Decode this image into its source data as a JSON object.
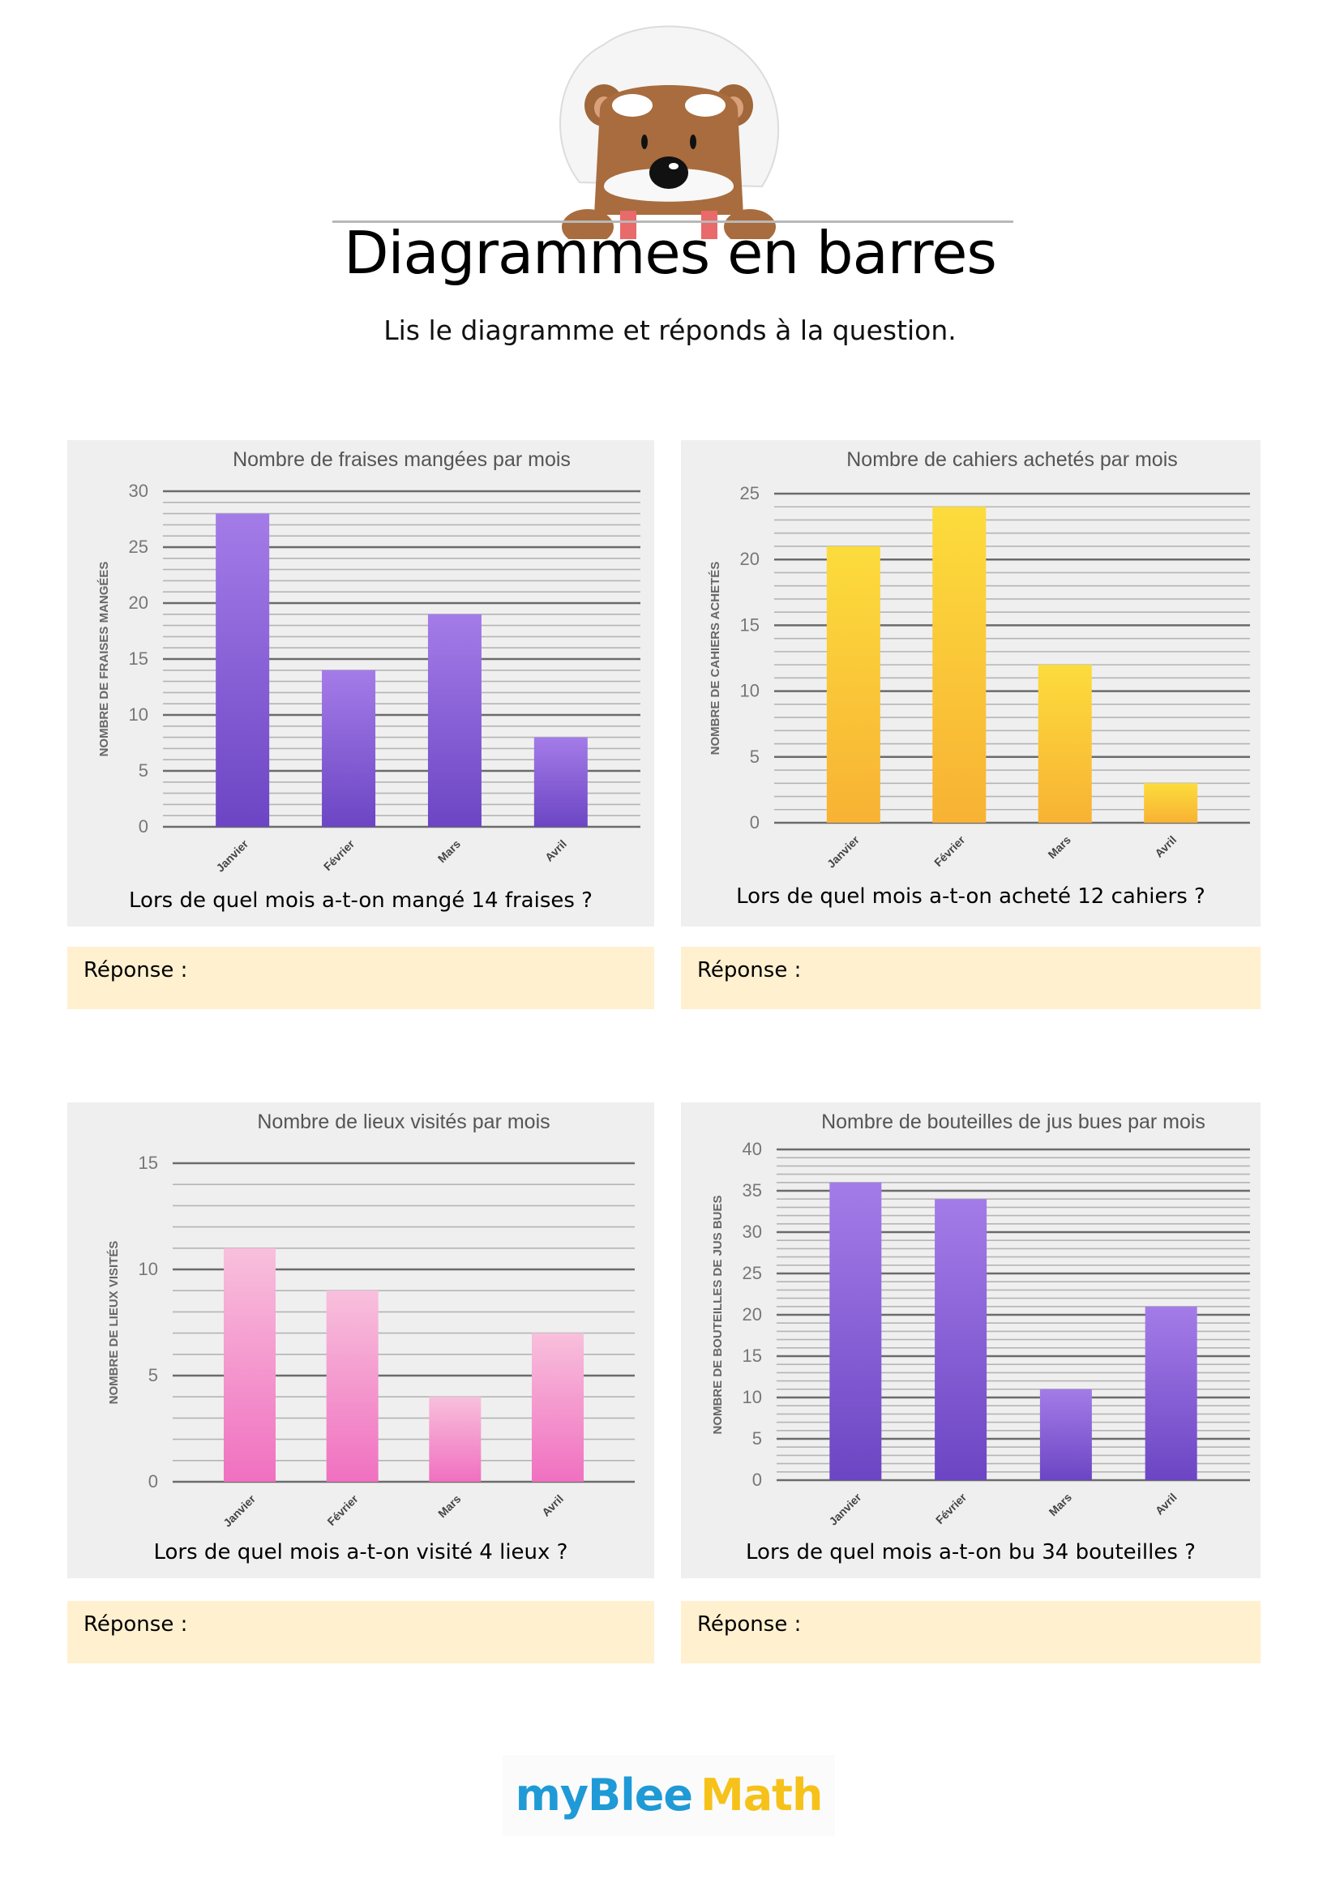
{
  "header": {
    "title": "Diagrammes en barres",
    "subtitle": "Lis le diagramme et réponds à la question.",
    "mascot": "bear-mascot-icon"
  },
  "exercises": [
    {
      "question": "Lors de quel mois a-t-on mangé 14 fraises ?",
      "answer_label": "Réponse :"
    },
    {
      "question": "Lors de quel mois a-t-on acheté 12 cahiers ?",
      "answer_label": "Réponse :"
    },
    {
      "question": "Lors de quel mois a-t-on visité 4 lieux ?",
      "answer_label": "Réponse :"
    },
    {
      "question": "Lors de quel mois a-t-on bu 34 bouteilles ?",
      "answer_label": "Réponse :"
    }
  ],
  "chart_data": [
    {
      "type": "bar",
      "title": "Nombre de fraises mangées par mois",
      "xlabel": "",
      "ylabel": "NOMBRE DE FRAISES MANGÉES",
      "categories": [
        "Janvier",
        "Février",
        "Mars",
        "Avril"
      ],
      "values": [
        28,
        14,
        19,
        8
      ],
      "ylim": [
        0,
        30
      ],
      "yticks": [
        0,
        5,
        10,
        15,
        20,
        25,
        30
      ],
      "minor_step": 1,
      "grid": true,
      "colors": [
        "#a47ce8",
        "#6c45c4"
      ]
    },
    {
      "type": "bar",
      "title": "Nombre de cahiers achetés par mois",
      "xlabel": "",
      "ylabel": "NOMBRE DE CAHIERS ACHETÉS",
      "categories": [
        "Janvier",
        "Février",
        "Mars",
        "Avril"
      ],
      "values": [
        21,
        24,
        12,
        3
      ],
      "ylim": [
        0,
        25
      ],
      "yticks": [
        0,
        5,
        10,
        15,
        20,
        25
      ],
      "minor_step": 1,
      "grid": true,
      "colors": [
        "#fcdc3c",
        "#f8b234"
      ]
    },
    {
      "type": "bar",
      "title": "Nombre de lieux visités par mois",
      "xlabel": "",
      "ylabel": "NOMBRE DE LIEUX VISITÉS",
      "categories": [
        "Janvier",
        "Février",
        "Mars",
        "Avril"
      ],
      "values": [
        11,
        9,
        4,
        7
      ],
      "ylim": [
        0,
        15
      ],
      "yticks": [
        0,
        5,
        10,
        15
      ],
      "minor_step": 1,
      "grid": true,
      "colors": [
        "#f8c0dc",
        "#f070c0"
      ]
    },
    {
      "type": "bar",
      "title": "Nombre de bouteilles de jus bues par mois",
      "xlabel": "",
      "ylabel": "NOMBRE DE BOUTEILLES DE JUS BUES",
      "categories": [
        "Janvier",
        "Février",
        "Mars",
        "Avril"
      ],
      "values": [
        36,
        34,
        11,
        21
      ],
      "ylim": [
        0,
        40
      ],
      "yticks": [
        0,
        5,
        10,
        15,
        20,
        25,
        30,
        35,
        40
      ],
      "minor_step": 1,
      "grid": true,
      "colors": [
        "#a47ce8",
        "#6c45c4"
      ]
    }
  ],
  "footer": {
    "logo_part1": "myBlee",
    "logo_part2": "Math",
    "logo_color1": "#1f9ad6",
    "logo_color2": "#f6c21a"
  }
}
